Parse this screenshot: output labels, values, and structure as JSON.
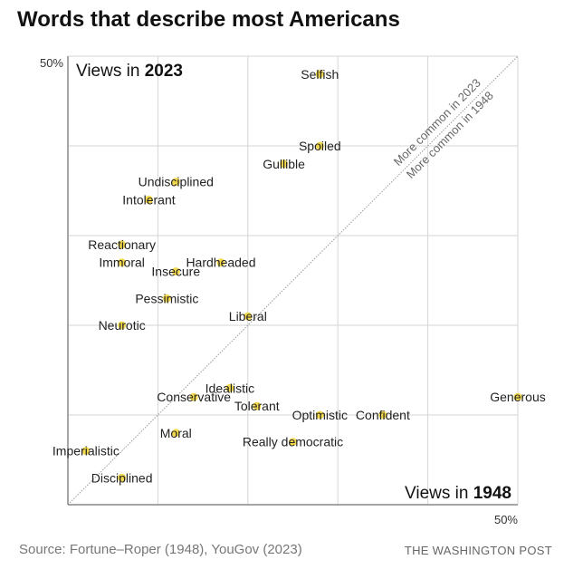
{
  "title": "Words that describe most Americans",
  "source": "Source: Fortune–Roper (1948), YouGov (2023)",
  "credit": "THE WASHINGTON POST",
  "chart_data": {
    "type": "scatter",
    "title": "Words that describe most Americans",
    "xlabel_prefix": "Views in ",
    "xlabel_year": "1948",
    "ylabel_prefix": "Views in ",
    "ylabel_year": "2023",
    "xlim": [
      0,
      50
    ],
    "ylim": [
      0,
      50
    ],
    "x_tick_label": "50%",
    "y_tick_label": "50%",
    "grid": true,
    "grid_step": 10,
    "diagonal_labels": [
      "More common in 2023",
      "More common in 1948"
    ],
    "marker_color": "#f2d94e",
    "points": [
      {
        "label": "Selfish",
        "x": 28,
        "y": 48
      },
      {
        "label": "Spoiled",
        "x": 28,
        "y": 40
      },
      {
        "label": "Gullible",
        "x": 24,
        "y": 38
      },
      {
        "label": "Undisciplined",
        "x": 12,
        "y": 36
      },
      {
        "label": "Intolerant",
        "x": 9,
        "y": 34
      },
      {
        "label": "Reactionary",
        "x": 6,
        "y": 29
      },
      {
        "label": "Immoral",
        "x": 6,
        "y": 27
      },
      {
        "label": "Insecure",
        "x": 12,
        "y": 26
      },
      {
        "label": "Hardheaded",
        "x": 17,
        "y": 27
      },
      {
        "label": "Pessimistic",
        "x": 11,
        "y": 23
      },
      {
        "label": "Neurotic",
        "x": 6,
        "y": 20
      },
      {
        "label": "Liberal",
        "x": 20,
        "y": 21
      },
      {
        "label": "Conservative",
        "x": 14,
        "y": 12
      },
      {
        "label": "Idealistic",
        "x": 18,
        "y": 13
      },
      {
        "label": "Tolerant",
        "x": 21,
        "y": 11
      },
      {
        "label": "Optimistic",
        "x": 28,
        "y": 10
      },
      {
        "label": "Confident",
        "x": 35,
        "y": 10
      },
      {
        "label": "Generous",
        "x": 50,
        "y": 12
      },
      {
        "label": "Really democratic",
        "x": 25,
        "y": 7
      },
      {
        "label": "Moral",
        "x": 12,
        "y": 8
      },
      {
        "label": "Imperialistic",
        "x": 2,
        "y": 6
      },
      {
        "label": "Disciplined",
        "x": 6,
        "y": 3
      }
    ]
  }
}
